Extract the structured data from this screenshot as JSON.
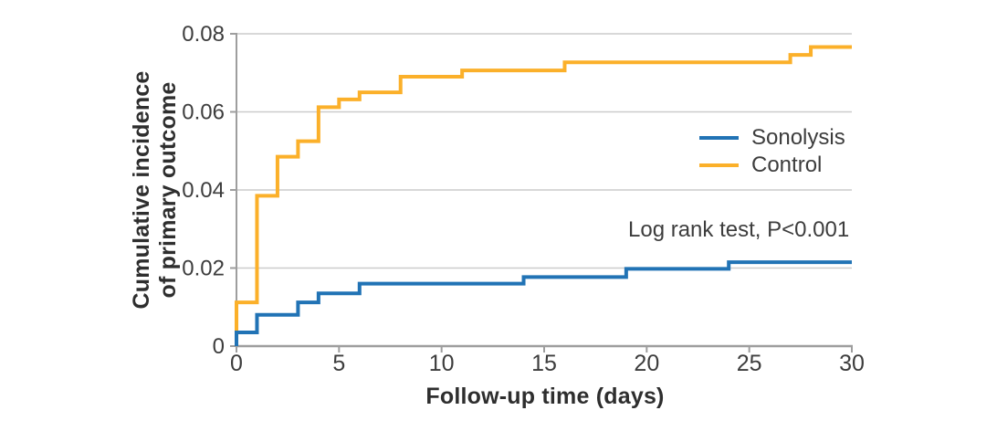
{
  "chart_data": {
    "type": "line",
    "subtype": "step-post-cumulative-incidence",
    "title": "",
    "xlabel": "Follow-up time (days)",
    "ylabel": "Cumulative incidence of primary outcome",
    "ylabel_line1": "Cumulative incidence",
    "ylabel_line2": "of primary outcome",
    "annotation": "Log rank test, P<0.001",
    "xlim": [
      0,
      30
    ],
    "ylim": [
      0,
      0.08
    ],
    "xticks": [
      0,
      5,
      10,
      15,
      20,
      25,
      30
    ],
    "xtick_labels": [
      "0",
      "5",
      "10",
      "15",
      "20",
      "25",
      "30"
    ],
    "yticks": [
      0,
      0.02,
      0.04,
      0.06,
      0.08
    ],
    "ytick_labels": [
      "0",
      "0.02",
      "0.04",
      "0.06",
      "0.08"
    ],
    "grid": true,
    "legend_position": "right-inside",
    "series": [
      {
        "name": "Sonolysis",
        "color": "#2173b5",
        "x": [
          0,
          1,
          3,
          4,
          6,
          14,
          19,
          24
        ],
        "y": [
          0.0035,
          0.008,
          0.0112,
          0.0135,
          0.016,
          0.0177,
          0.0198,
          0.0215
        ],
        "end_x": 30
      },
      {
        "name": "Control",
        "color": "#fbb02a",
        "x": [
          0,
          1,
          2,
          3,
          4,
          5,
          6,
          8,
          11,
          16,
          27,
          28
        ],
        "y": [
          0.0112,
          0.0385,
          0.0485,
          0.0525,
          0.0612,
          0.0632,
          0.065,
          0.069,
          0.0706,
          0.0727,
          0.0746,
          0.0766
        ],
        "end_x": 30
      }
    ],
    "colors": {
      "axis": "#9e9e9e",
      "grid": "#cccccc",
      "tick_text": "#3d3d3d",
      "label_text": "#2e2e2e"
    }
  }
}
